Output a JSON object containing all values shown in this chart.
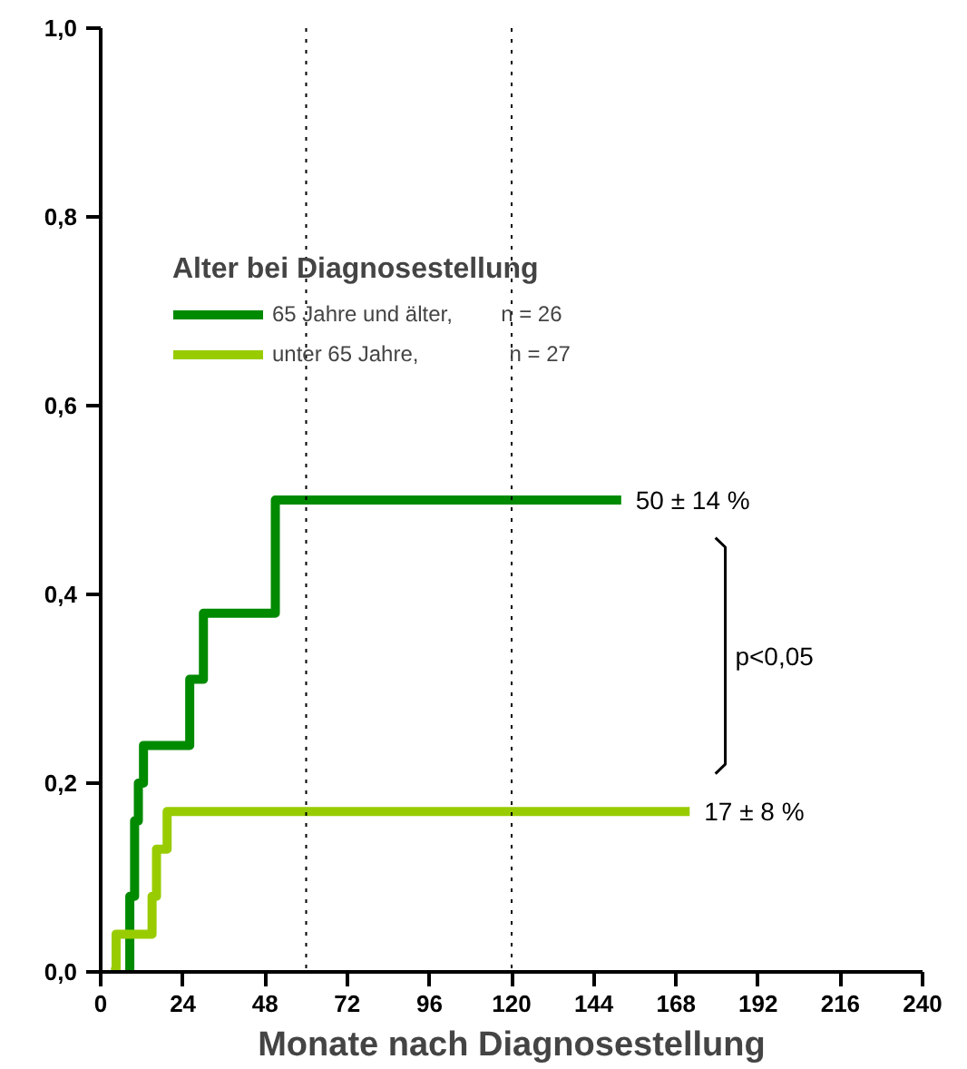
{
  "chart_data": {
    "type": "step",
    "xlabel": "Monate nach Diagnosestellung",
    "legend_title": "Alter bei Diagnosestellung",
    "series": [
      {
        "name": "65 Jahre und älter,        n = 26",
        "color": "#008a00",
        "x": [
          8,
          8.5,
          9.9,
          11,
          12.5,
          26,
          30,
          51,
          152
        ],
        "values": [
          0,
          0.08,
          0.16,
          0.2,
          0.24,
          0.31,
          0.38,
          0.5,
          0.5
        ]
      },
      {
        "name": "unter 65 Jahre,               n = 27",
        "color": "#99cc00",
        "x": [
          3,
          4.5,
          15,
          16.3,
          19.4,
          172
        ],
        "values": [
          0,
          0.04,
          0.08,
          0.13,
          0.17,
          0.17
        ]
      }
    ],
    "xlim": [
      0,
      240
    ],
    "xticks": [
      0,
      24,
      48,
      72,
      96,
      120,
      144,
      168,
      192,
      216,
      240
    ],
    "ylim": [
      0,
      1.0
    ],
    "yticks": [
      {
        "value": 0,
        "label": "0,0"
      },
      {
        "value": 0.2,
        "label": "0,2"
      },
      {
        "value": 0.4,
        "label": "0,4"
      },
      {
        "value": 0.6,
        "label": "0,6"
      },
      {
        "value": 0.8,
        "label": "0,8"
      },
      {
        "value": 1.0,
        "label": "1,0"
      }
    ],
    "ref_lines": [
      {
        "axis": "x",
        "value": 60,
        "color": "#000000",
        "line_style": "dotted"
      },
      {
        "axis": "x",
        "value": 120,
        "color": "#000000",
        "line_style": "dotted"
      }
    ],
    "annotations": [
      {
        "text": "50 ± 14 %",
        "x": 152,
        "y": 0.5
      },
      {
        "text": "17 ± 8 %",
        "x": 172,
        "y": 0.17
      },
      "p<0,05"
    ],
    "grid": false,
    "legend": "top left",
    "line_style": "solid"
  }
}
